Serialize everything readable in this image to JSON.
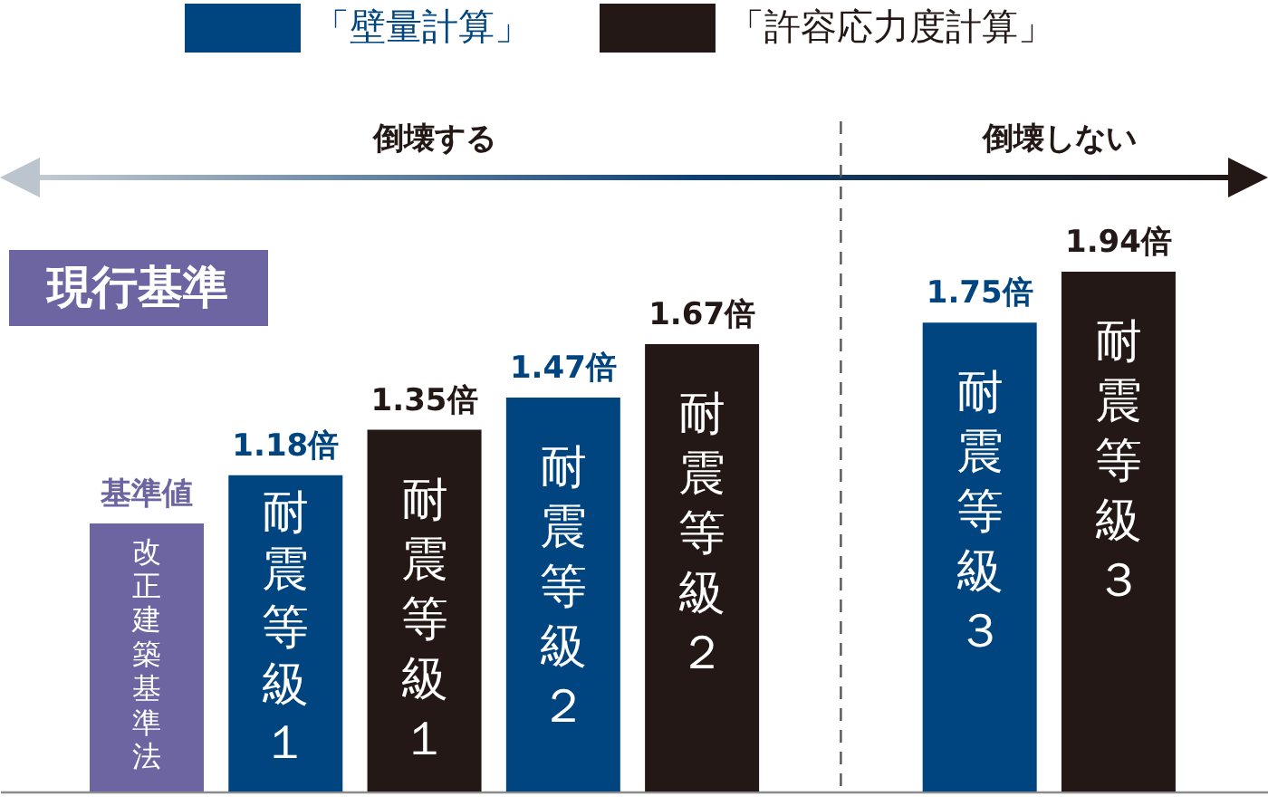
{
  "chart_data": {
    "type": "bar",
    "categories": [
      "改正建築基準法",
      "耐震等級１",
      "耐震等級１",
      "耐震等級２",
      "耐震等級２",
      null,
      "耐震等級３",
      "耐震等級３"
    ],
    "series": [
      {
        "color": "#6c65a1",
        "values": [
          1,
          null,
          null,
          null,
          null,
          null,
          null,
          null
        ],
        "value_labels": [
          "基準値",
          null,
          null,
          null,
          null,
          null,
          null,
          null
        ]
      },
      {
        "name": "「壁量計算」",
        "color": "#00457f",
        "values": [
          null,
          1.18,
          null,
          1.47,
          null,
          null,
          1.75,
          null
        ],
        "value_labels": [
          null,
          "1.18倍",
          null,
          "1.47倍",
          null,
          null,
          "1.75倍",
          null
        ]
      },
      {
        "name": "「許容応力度計算」",
        "color": "#231815",
        "values": [
          null,
          null,
          1.35,
          null,
          1.67,
          null,
          null,
          1.94
        ],
        "value_labels": [
          null,
          null,
          "1.35倍",
          null,
          "1.67倍",
          null,
          null,
          "1.94倍"
        ]
      }
    ],
    "legend": "top",
    "annotations": [
      "現行基準",
      "倒壊する",
      "倒壊しない"
    ]
  }
}
